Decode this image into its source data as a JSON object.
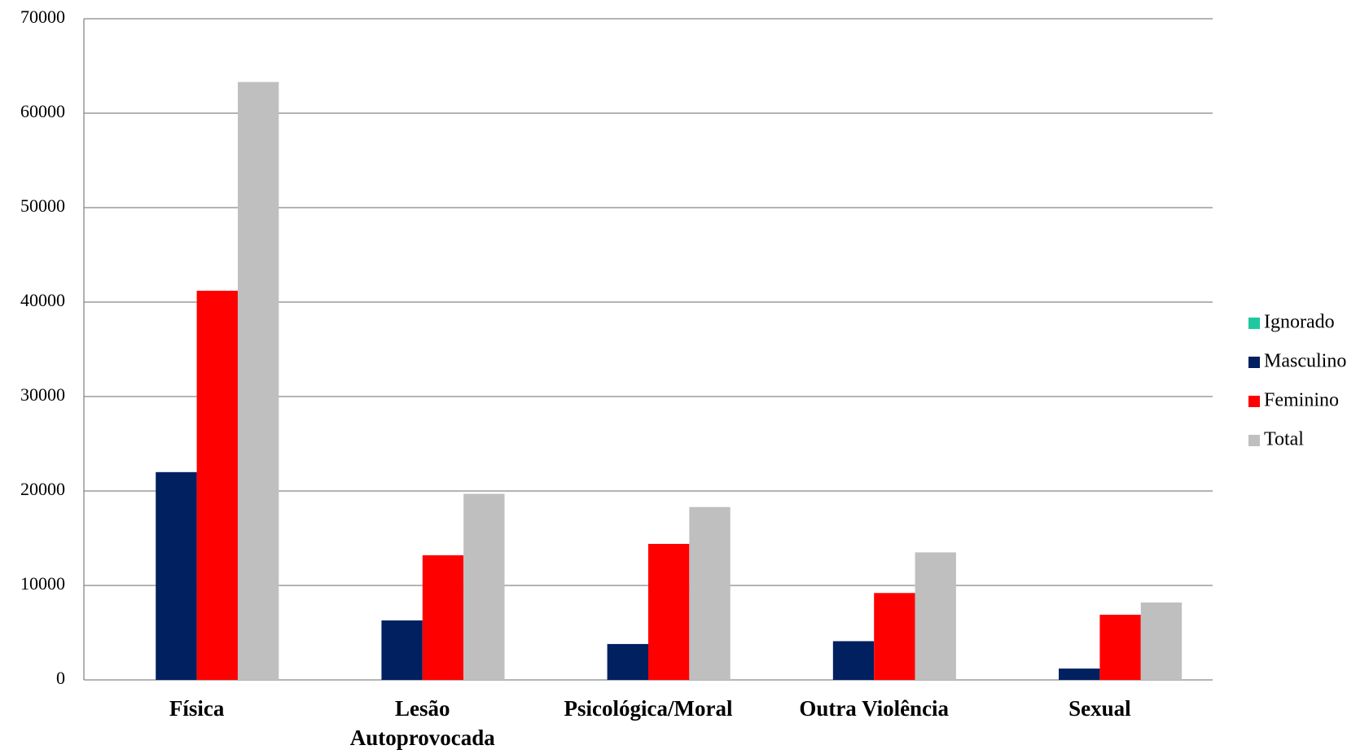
{
  "chart_data": {
    "type": "bar",
    "categories": [
      "Física",
      "Lesão Autoprovocada",
      "Psicológica/Moral",
      "Outra Violência",
      "Sexual"
    ],
    "series": [
      {
        "name": "Ignorado",
        "color": "#1fc9a0",
        "values": [
          0,
          0,
          0,
          0,
          0
        ]
      },
      {
        "name": "Masculino",
        "color": "#002060",
        "values": [
          22000,
          6300,
          3800,
          4100,
          1200
        ]
      },
      {
        "name": "Feminino",
        "color": "#ff0000",
        "values": [
          41200,
          13200,
          14400,
          9200,
          6900
        ]
      },
      {
        "name": "Total",
        "color": "#bfbfbf",
        "values": [
          63300,
          19700,
          18300,
          13500,
          8200
        ]
      }
    ],
    "ylim": [
      0,
      70000
    ],
    "yticks": [
      0,
      10000,
      20000,
      30000,
      40000,
      50000,
      60000,
      70000
    ],
    "grid": true,
    "legend": "right"
  }
}
